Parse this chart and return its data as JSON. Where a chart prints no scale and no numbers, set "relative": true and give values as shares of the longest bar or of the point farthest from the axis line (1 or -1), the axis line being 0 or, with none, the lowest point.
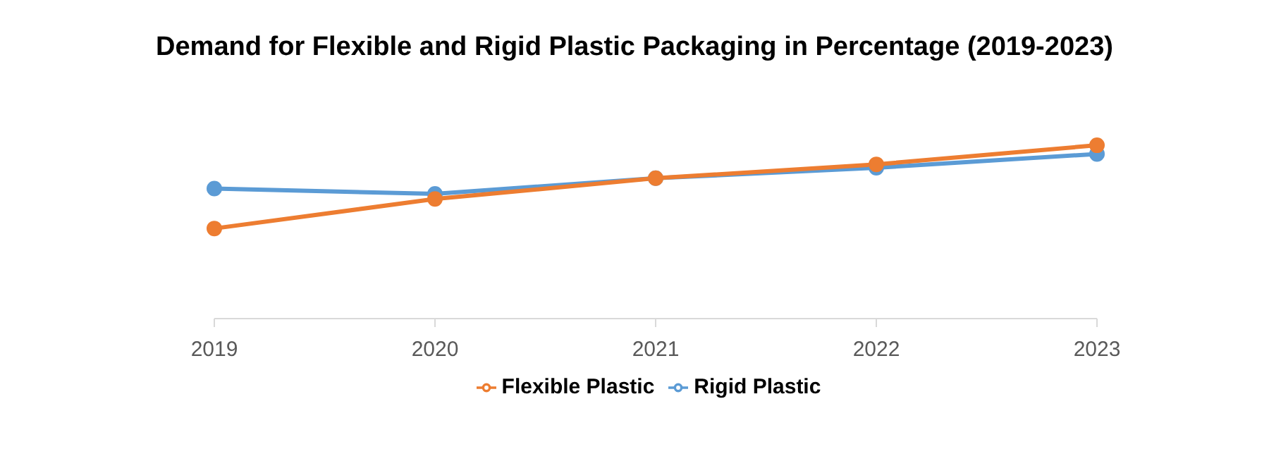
{
  "chart_data": {
    "type": "line",
    "title": "Demand for Flexible and Rigid Plastic Packaging in Percentage (2019-2023)",
    "categories": [
      "2019",
      "2020",
      "2021",
      "2022",
      "2023"
    ],
    "relative": true,
    "legend": "bottom",
    "marker": "circle",
    "series": [
      {
        "name": "Rigid Plastic",
        "color": "#5b9bd5",
        "values": [
          0.75,
          0.72,
          0.81,
          0.87,
          0.95
        ]
      },
      {
        "name": "Flexible Plastic",
        "color": "#ed7d31",
        "values": [
          0.52,
          0.69,
          0.81,
          0.89,
          1
        ]
      }
    ]
  }
}
